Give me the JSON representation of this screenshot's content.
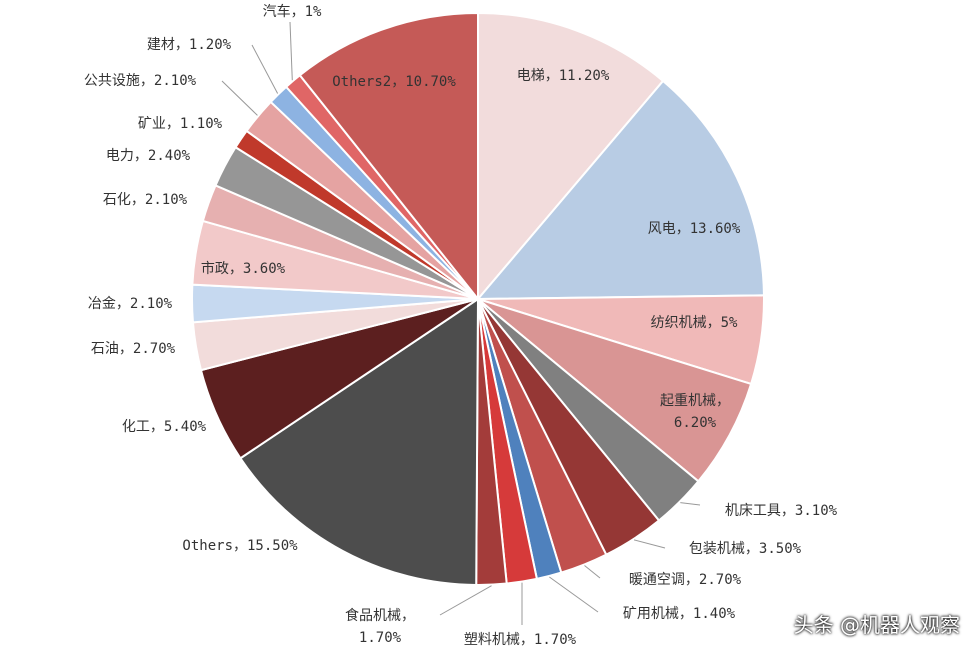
{
  "chart_data": {
    "type": "pie",
    "labels": [
      "电梯，11.20%",
      "风电，13.60%",
      "纺织机械，5%",
      "起重机械，\n6.20%",
      "机床工具，3.10%",
      "包装机械，3.50%",
      "暖通空调，2.70%",
      "矿用机械，1.40%",
      "塑料机械，1.70%",
      "食品机械，\n1.70%",
      "Others，15.50%",
      "化工，5.40%",
      "石油，2.70%",
      "冶金，2.10%",
      "市政，3.60%",
      "石化，2.10%",
      "电力，2.40%",
      "矿业，1.10%",
      "公共设施，2.10%",
      "建材，1.20%",
      "汽车，1%",
      "Others2，10.70%"
    ],
    "values": [
      11.2,
      13.6,
      5,
      6.2,
      3.1,
      3.5,
      2.7,
      1.4,
      1.7,
      1.7,
      15.5,
      5.4,
      2.7,
      2.1,
      3.6,
      2.1,
      2.4,
      1.1,
      2.1,
      1.2,
      1,
      10.7
    ],
    "colors": [
      "#f2dcdc",
      "#b8cce4",
      "#f0b9b8",
      "#d99594",
      "#808080",
      "#953735",
      "#c0504d",
      "#4f81bd",
      "#d63a3a",
      "#a33c3a",
      "#4d4d4d",
      "#5c1f1f",
      "#f2dcdb",
      "#c6d9f0",
      "#f2c9c9",
      "#e6b0b0",
      "#969696",
      "#c0392b",
      "#e5a3a2",
      "#8db3e2",
      "#e06666",
      "#c55a57"
    ],
    "watermark": "头条 @机器人观察"
  }
}
